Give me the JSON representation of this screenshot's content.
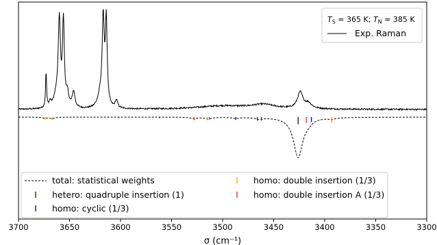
{
  "chart_data": {
    "type": "line",
    "xlabel": "σ (cm⁻¹)",
    "xlim": [
      3700,
      3300
    ],
    "xticks": [
      3700,
      3650,
      3600,
      3550,
      3500,
      3450,
      3400,
      3350,
      3300
    ],
    "top_legend": {
      "title_parts": [
        {
          "t": "T",
          "style": "italic"
        },
        {
          "t": "S",
          "style": "sub"
        },
        {
          "t": " = 365 K; ",
          "style": "normal"
        },
        {
          "t": "T",
          "style": "italic"
        },
        {
          "t": "N",
          "style": "sub"
        },
        {
          "t": " = 385 K",
          "style": "normal"
        }
      ],
      "entry": "Exp. Raman"
    },
    "exp_raman": {
      "baseline": 0.0,
      "scale_top": 1.0,
      "peaks": [
        {
          "x": 3673.0,
          "h": 0.85,
          "w": 0.6
        },
        {
          "x": 3669.0,
          "h": 0.12,
          "w": 1.2
        },
        {
          "x": 3663.0,
          "h": 0.25,
          "w": 3.0
        },
        {
          "x": 3660.0,
          "h": 2.0,
          "w": 1.3
        },
        {
          "x": 3656.0,
          "h": 2.0,
          "w": 1.1
        },
        {
          "x": 3652.0,
          "h": 0.3,
          "w": 1.5
        },
        {
          "x": 3646.0,
          "h": 0.38,
          "w": 1.6
        },
        {
          "x": 3620.0,
          "h": 0.28,
          "w": 3.0
        },
        {
          "x": 3617.0,
          "h": 2.0,
          "w": 1.2
        },
        {
          "x": 3614.0,
          "h": 2.0,
          "w": 1.1
        },
        {
          "x": 3604.0,
          "h": 0.18,
          "w": 1.5
        },
        {
          "x": 3500.0,
          "h": 0.08,
          "w": 30.0
        },
        {
          "x": 3460.0,
          "h": 0.1,
          "w": 14.0
        },
        {
          "x": 3424.0,
          "h": 0.38,
          "w": 3.2
        },
        {
          "x": 3416.0,
          "h": 0.12,
          "w": 4.0
        }
      ]
    },
    "sticks": [
      {
        "x": 3674,
        "h": 0.035,
        "color": "#ff9f1c"
      },
      {
        "x": 3667,
        "h": 0.04,
        "color": "#ff9f1c"
      },
      {
        "x": 3602,
        "h": 0.015,
        "color": "#0000ee"
      },
      {
        "x": 3562,
        "h": 0.015,
        "color": "#0000ee"
      },
      {
        "x": 3528,
        "h": 0.045,
        "color": "#e8351e"
      },
      {
        "x": 3515,
        "h": 0.045,
        "color": "#ff9f1c"
      },
      {
        "x": 3513,
        "h": 0.035,
        "color": "#e8351e"
      },
      {
        "x": 3487,
        "h": 0.04,
        "color": "#0000ee"
      },
      {
        "x": 3466,
        "h": 0.05,
        "color": "#333333"
      },
      {
        "x": 3462,
        "h": 0.05,
        "color": "#333333"
      },
      {
        "x": 3426,
        "h": 0.1,
        "color": "#222222"
      },
      {
        "x": 3418,
        "h": 0.08,
        "color": "#e8351e"
      },
      {
        "x": 3413,
        "h": 0.07,
        "color": "#0000ee"
      },
      {
        "x": 3393,
        "h": 0.08,
        "color": "#ff9f1c"
      }
    ],
    "total_weights": {
      "peaks": [
        {
          "x": 3674,
          "h": 0.015,
          "w": 3
        },
        {
          "x": 3667,
          "h": 0.02,
          "w": 3
        },
        {
          "x": 3528,
          "h": 0.02,
          "w": 4
        },
        {
          "x": 3514,
          "h": 0.025,
          "w": 4
        },
        {
          "x": 3487,
          "h": 0.015,
          "w": 4
        },
        {
          "x": 3464,
          "h": 0.025,
          "w": 4
        },
        {
          "x": 3426,
          "h": 0.56,
          "w": 5.5
        },
        {
          "x": 3416,
          "h": 0.04,
          "w": 4
        },
        {
          "x": 3393,
          "h": 0.02,
          "w": 4
        }
      ]
    },
    "legend": [
      {
        "label": "total: statistical weights",
        "marker": "dashed",
        "color": "#000000"
      },
      {
        "label": "homo: double insertion (1/3)",
        "marker": "tick",
        "color": "#ff9f1c"
      },
      {
        "label": "hetero: quadruple insertion (1)",
        "marker": "tick",
        "color": "#222222"
      },
      {
        "label": "homo: double insertion A (1/3)",
        "marker": "tick",
        "color": "#e8351e"
      },
      {
        "label": "homo: cyclic (1/3)",
        "marker": "tick",
        "color": "#0000ee"
      }
    ]
  }
}
